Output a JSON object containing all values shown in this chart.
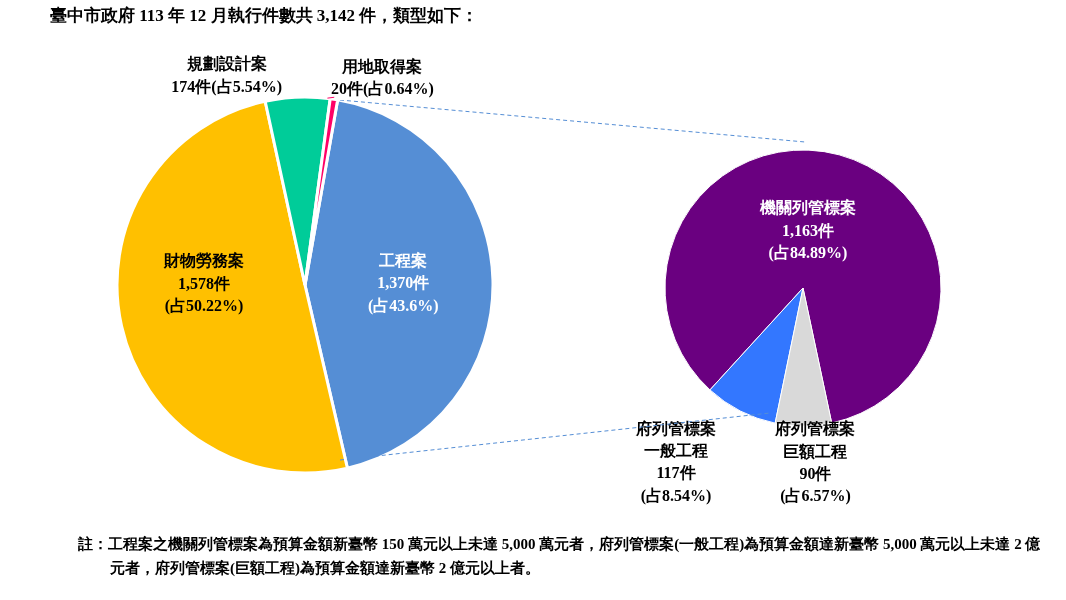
{
  "chart_data": [
    {
      "type": "pie",
      "title": "臺中市政府 113 年 12 月執行件數共 3,142 件，類型如下：",
      "categories": [
        "工程案",
        "財物勞務案",
        "規劃設計案",
        "用地取得案"
      ],
      "values": [
        1370,
        1578,
        174,
        20
      ],
      "colors": [
        "#558ed5",
        "#ffc000",
        "#00cc99",
        "#ff0066"
      ],
      "value_labels": [
        "1,370件\n(占43.6%)",
        "1,578件\n(占50.22%)",
        "174件(占5.54%)",
        "20件(占0.64%)"
      ],
      "annotations": [
        "註：工程案之機關列管標案為預算金額新臺幣 150 萬元以上未達 5,000 萬元者，府列管標案(一般工程)為預算金額達新臺幣 5,000 萬元以上未達 2 億元者，府列管標案(巨額工程)為預算金額達新臺幣 2 億元以上者。"
      ]
    },
    {
      "type": "pie",
      "categories": [
        "機關列管標案",
        "府列管標案一般工程",
        "府列管標案巨額工程"
      ],
      "values": [
        1163,
        117,
        90
      ],
      "colors": [
        "#6a0080",
        "#3377ff",
        "#d9d9d9"
      ],
      "value_labels": [
        "1,163件\n(占84.89%)",
        "117件\n(占8.54%)",
        "90件\n(占6.57%)"
      ]
    }
  ]
}
